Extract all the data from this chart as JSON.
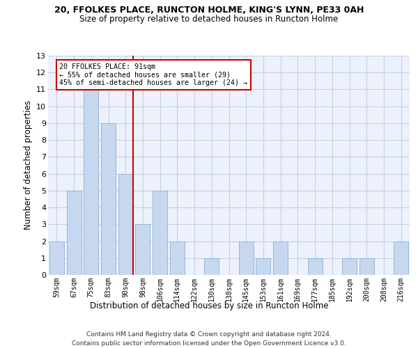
{
  "title1": "20, FFOLKES PLACE, RUNCTON HOLME, KING'S LYNN, PE33 0AH",
  "title2": "Size of property relative to detached houses in Runcton Holme",
  "xlabel": "Distribution of detached houses by size in Runcton Holme",
  "ylabel": "Number of detached properties",
  "categories": [
    "59sqm",
    "67sqm",
    "75sqm",
    "83sqm",
    "90sqm",
    "98sqm",
    "106sqm",
    "114sqm",
    "122sqm",
    "130sqm",
    "138sqm",
    "145sqm",
    "153sqm",
    "161sqm",
    "169sqm",
    "177sqm",
    "185sqm",
    "192sqm",
    "200sqm",
    "208sqm",
    "216sqm"
  ],
  "values": [
    2,
    5,
    11,
    9,
    6,
    3,
    5,
    2,
    0,
    1,
    0,
    2,
    1,
    2,
    0,
    1,
    0,
    1,
    1,
    0,
    2
  ],
  "bar_color": "#c5d8f0",
  "bar_edge_color": "#9ab5d5",
  "vline_color": "#cc0000",
  "vline_x_idx": 4,
  "annotation_line1": "20 FFOLKES PLACE: 91sqm",
  "annotation_line2": "← 55% of detached houses are smaller (29)",
  "annotation_line3": "45% of semi-detached houses are larger (24) →",
  "annotation_box_color": "#ffffff",
  "annotation_box_edge": "#cc0000",
  "ylim_max": 13,
  "bg_color": "#edf1fb",
  "grid_color": "#c5cfe8",
  "footer1": "Contains HM Land Registry data © Crown copyright and database right 2024.",
  "footer2": "Contains public sector information licensed under the Open Government Licence v3.0."
}
